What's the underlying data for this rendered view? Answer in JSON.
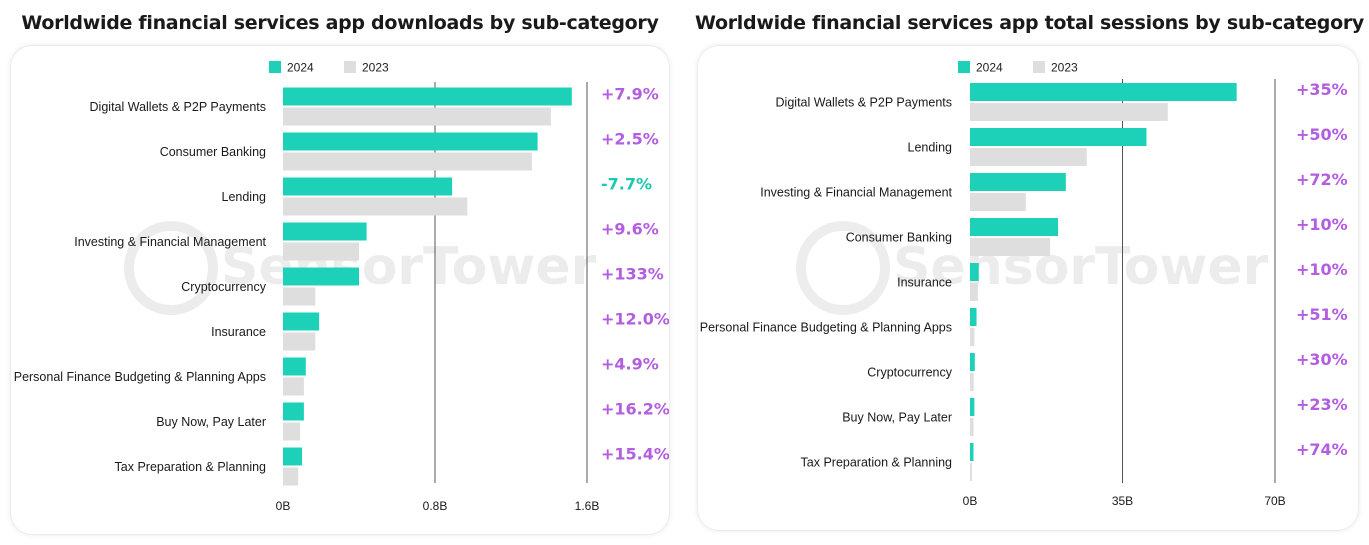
{
  "colors": {
    "series_2024": "#1cd1b8",
    "series_2023": "#dedede",
    "delta_positive": "#b35de0",
    "delta_negative": "#1cc9ad",
    "gridline": "#555555"
  },
  "watermark": {
    "text": "SensorTower"
  },
  "chart_data": [
    {
      "type": "bar",
      "orientation": "horizontal",
      "title": "Worldwide financial services app downloads by sub-category",
      "legend": [
        "2024",
        "2023"
      ],
      "legend_position": "top",
      "categories": [
        "Digital Wallets & P2P Payments",
        "Consumer Banking",
        "Lending",
        "Investing & Financial Management",
        "Cryptocurrency",
        "Insurance",
        "Personal Finance Budgeting & Planning Apps",
        "Buy Now, Pay Later",
        "Tax Preparation & Planning"
      ],
      "series": [
        {
          "name": "2024",
          "values": [
            1.52,
            1.34,
            0.89,
            0.44,
            0.4,
            0.19,
            0.12,
            0.11,
            0.1
          ]
        },
        {
          "name": "2023",
          "values": [
            1.41,
            1.31,
            0.97,
            0.4,
            0.17,
            0.17,
            0.11,
            0.09,
            0.08
          ]
        }
      ],
      "changes": [
        "+7.9%",
        "+2.5%",
        "-7.7%",
        "+9.6%",
        "+133%",
        "+12.0%",
        "+4.9%",
        "+16.2%",
        "+15.4%"
      ],
      "xlim": [
        0,
        1.6
      ],
      "xticks": [
        0,
        0.8,
        1.6
      ],
      "xtick_labels": [
        "0B",
        "0.8B",
        "1.6B"
      ],
      "grid": true
    },
    {
      "type": "bar",
      "orientation": "horizontal",
      "title": "Worldwide financial services app total sessions by sub-category",
      "legend": [
        "2024",
        "2023"
      ],
      "legend_position": "top",
      "categories": [
        "Digital Wallets & P2P Payments",
        "Lending",
        "Investing & Financial Management",
        "Consumer Banking",
        "Insurance",
        "Personal Finance Budgeting & Planning Apps",
        "Cryptocurrency",
        "Buy Now, Pay Later",
        "Tax Preparation & Planning"
      ],
      "series": [
        {
          "name": "2024",
          "values": [
            61.2,
            40.5,
            22.0,
            20.2,
            2.0,
            1.5,
            1.1,
            1.0,
            0.8
          ]
        },
        {
          "name": "2023",
          "values": [
            45.4,
            26.8,
            12.8,
            18.4,
            1.8,
            1.0,
            0.85,
            0.8,
            0.46
          ]
        }
      ],
      "changes": [
        "+35%",
        "+50%",
        "+72%",
        "+10%",
        "+10%",
        "+51%",
        "+30%",
        "+23%",
        "+74%"
      ],
      "xlim": [
        0,
        70
      ],
      "xticks": [
        0,
        35,
        70
      ],
      "xtick_labels": [
        "0B",
        "35B",
        "70B"
      ],
      "grid": true
    }
  ]
}
